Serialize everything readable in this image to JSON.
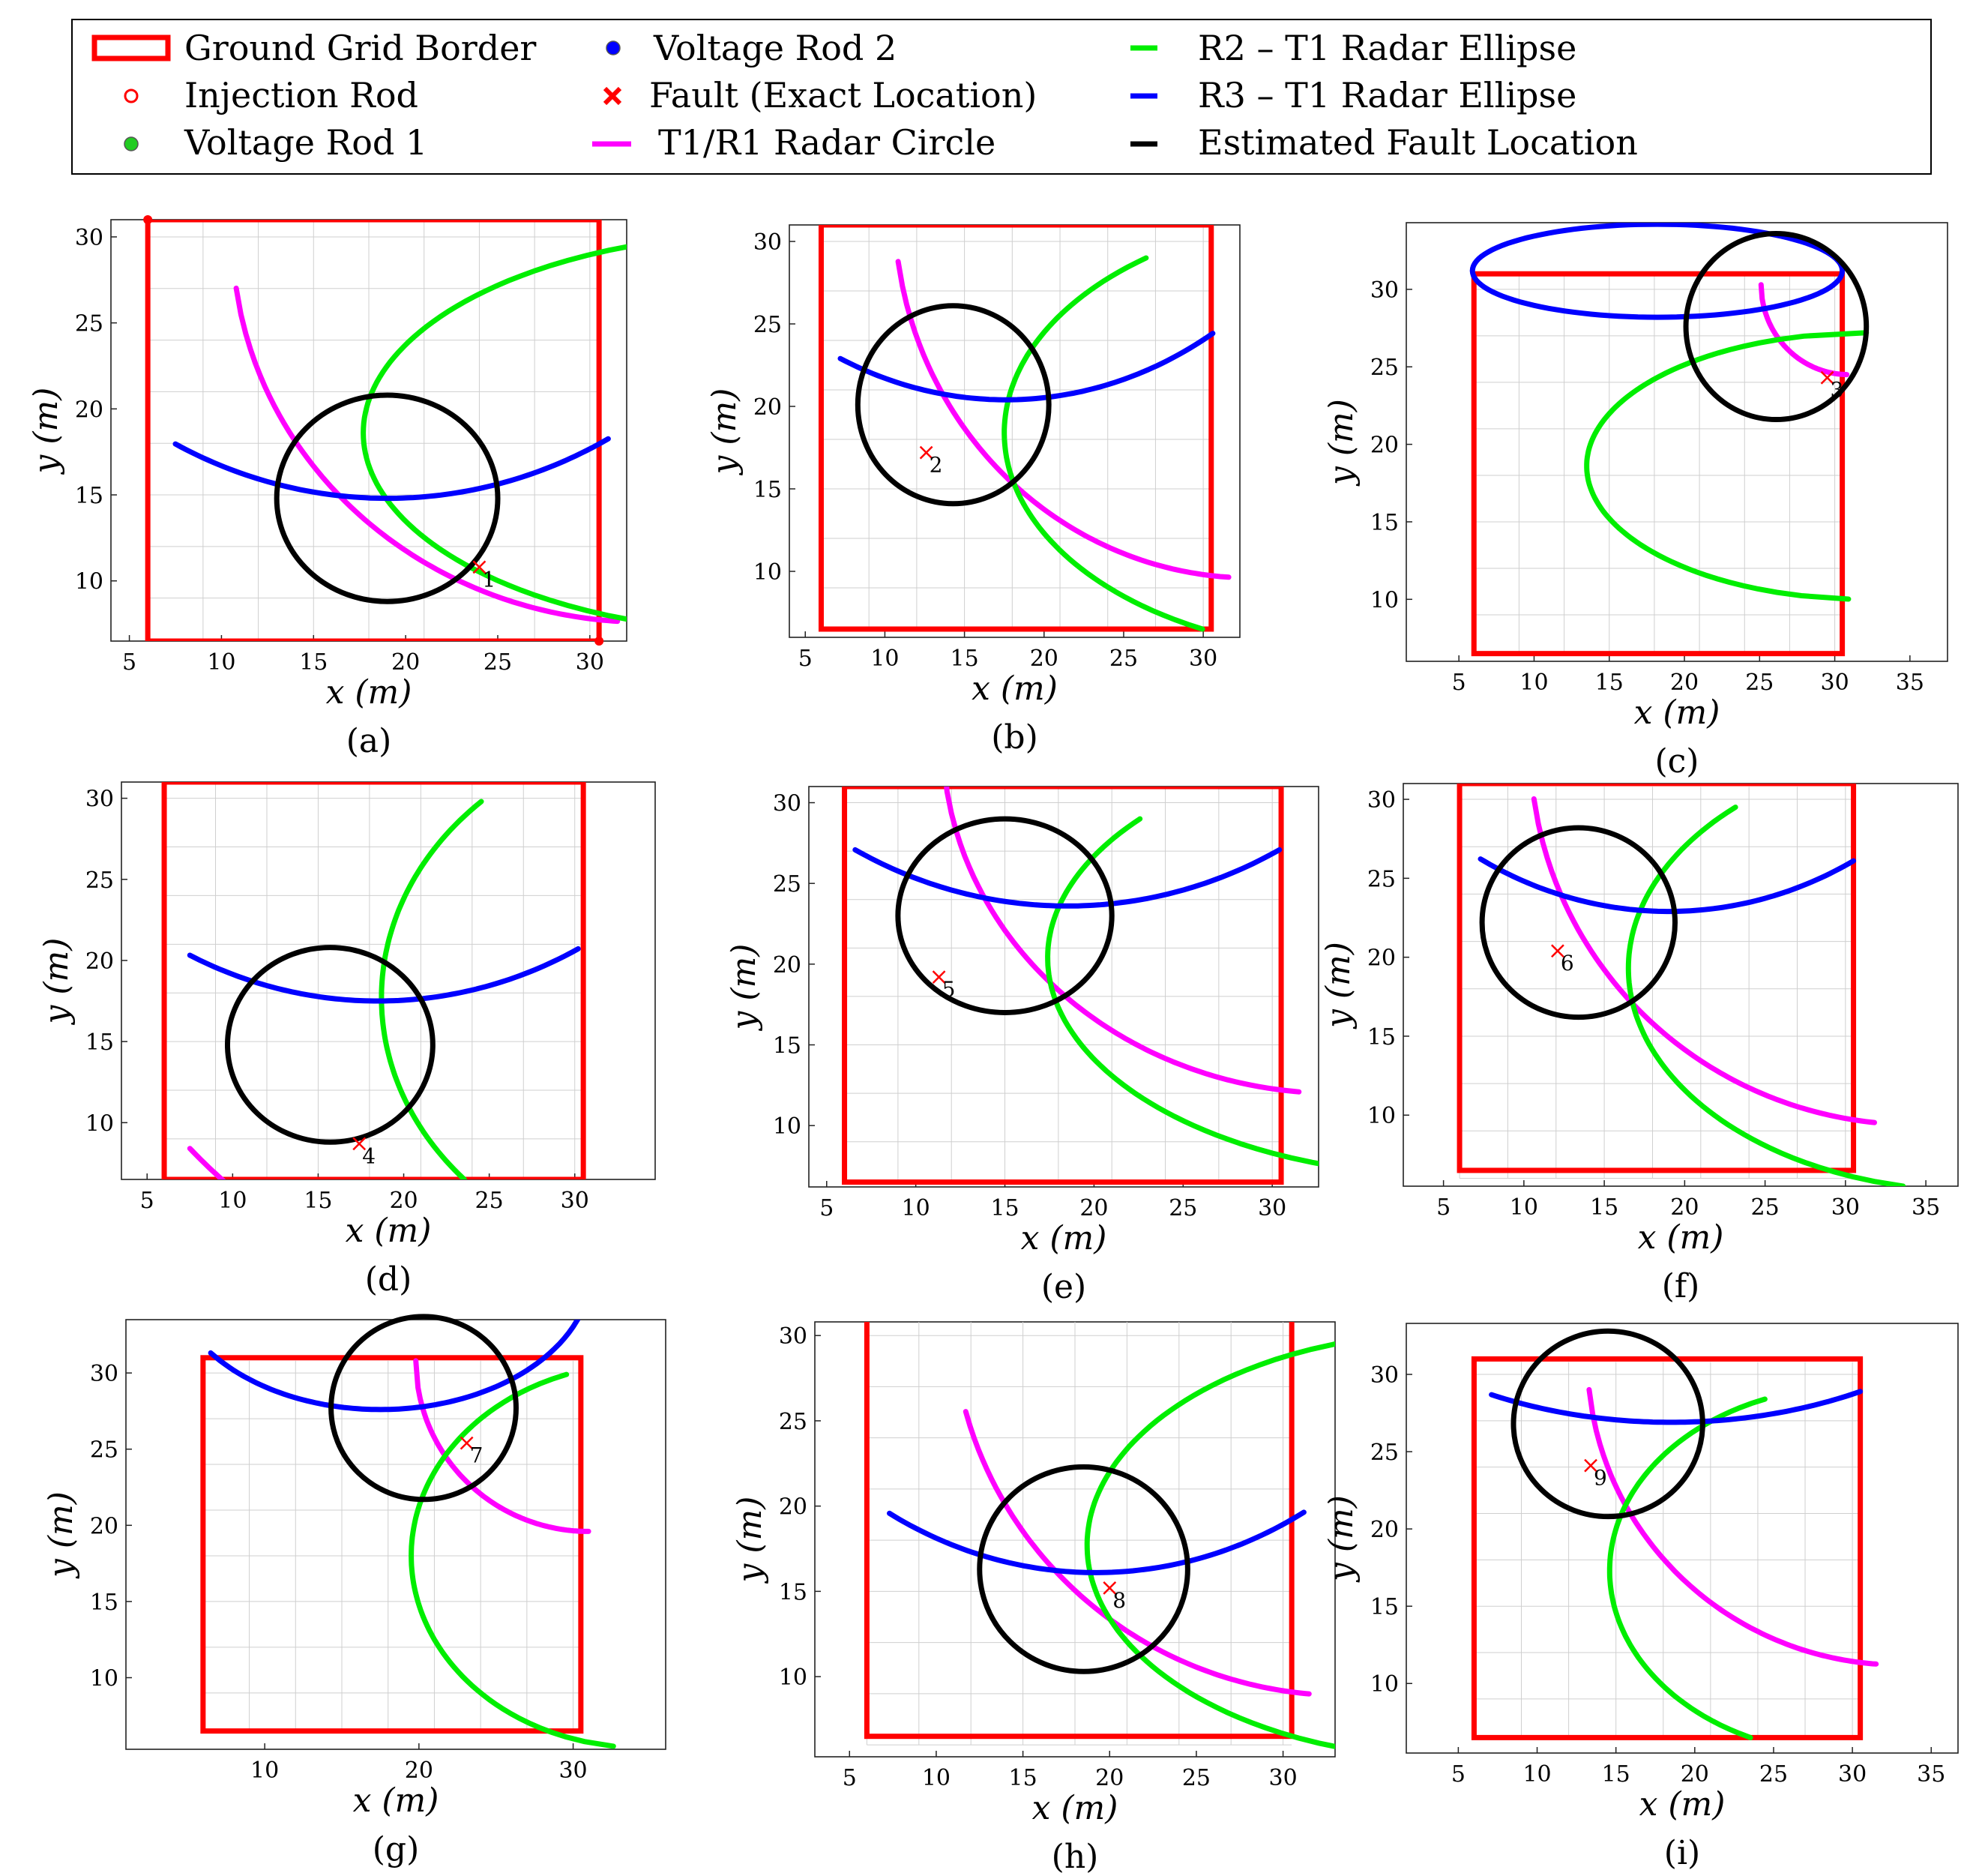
{
  "colors": {
    "border": "#ff0000",
    "injection": "#ff0000",
    "vrod1": "#22cc22",
    "vrod2": "#0000ff",
    "fault": "#ff0000",
    "circle": "#ff00ff",
    "ellipse2": "#00ee00",
    "ellipse3": "#0000ff",
    "estimate": "#000000"
  },
  "legend": {
    "border": "Ground Grid Border",
    "injection": "Injection Rod",
    "vrod1": "Voltage Rod 1",
    "vrod2": "Voltage Rod 2",
    "fault": "Fault (Exact Location)",
    "circle": "T1/R1 Radar Circle",
    "ellipse2": "R2 – T1 Radar Ellipse",
    "ellipse3": "R3 – T1 Radar Ellipse",
    "estimate": "Estimated Fault Location"
  },
  "chart_data": [
    {
      "type": "line",
      "caption": "(a)",
      "xlabel": "x (m)",
      "ylabel": "y (m)",
      "xlim": [
        4,
        32
      ],
      "ylim": [
        6.5,
        31
      ],
      "xticks": [
        5,
        10,
        15,
        20,
        25,
        30
      ],
      "yticks": [
        10,
        15,
        20,
        25,
        30
      ],
      "grid": [
        6,
        30.5,
        6.5,
        31
      ],
      "injection_rod": [
        6,
        31
      ],
      "voltage_rod_1": [
        30.5,
        6.5
      ],
      "fault": [
        24,
        10.8
      ],
      "fault_label": "1",
      "estimate_center": [
        19,
        14.8
      ],
      "estimate_radius": 6,
      "circle": {
        "center": [
          33,
          30
        ],
        "radius": 22.4,
        "x_from": 10.8,
        "x_to": 31.5
      },
      "ellipse2": {
        "center": [
          40,
          18.6
        ],
        "a": 22.3,
        "b": 11.6,
        "y_from": 6.8,
        "y_to": 30.4
      },
      "ellipse3": {
        "center": [
          19,
          43
        ],
        "a": 25,
        "b": 28.2,
        "x_from": 7.5,
        "x_to": 31
      }
    },
    {
      "type": "line",
      "caption": "(b)",
      "xlabel": "x (m)",
      "ylabel": "y (m)",
      "xlim": [
        4,
        32.3
      ],
      "ylim": [
        6,
        31
      ],
      "xticks": [
        5,
        10,
        15,
        20,
        25,
        30
      ],
      "yticks": [
        10,
        15,
        20,
        25,
        30
      ],
      "grid": [
        6,
        30.5,
        6.5,
        31
      ],
      "fault": [
        12.6,
        17.2
      ],
      "fault_label": "2",
      "estimate_center": [
        14.3,
        20.1
      ],
      "estimate_radius": 6,
      "circle": {
        "center": [
          33,
          32
        ],
        "radius": 22.4,
        "x_from": 10.3,
        "x_to": 31.6
      },
      "ellipse2": {
        "center": [
          40,
          18.4
        ],
        "a": 22.5,
        "b": 13.3,
        "y_from": 6.5,
        "y_to": 29
      },
      "ellipse3": {
        "center": [
          17.6,
          48
        ],
        "a": 25,
        "b": 27.6,
        "x_from": 7.2,
        "x_to": 30.6
      }
    },
    {
      "type": "line",
      "caption": "(c)",
      "xlabel": "x (m)",
      "ylabel": "y (m)",
      "xlim": [
        1.5,
        37.5
      ],
      "ylim": [
        6,
        34.3
      ],
      "xticks": [
        5,
        10,
        15,
        20,
        25,
        30,
        35
      ],
      "yticks": [
        10,
        15,
        20,
        25,
        30
      ],
      "grid": [
        6,
        30.5,
        6.5,
        31
      ],
      "fault": [
        29.5,
        24.3
      ],
      "fault_label": "3",
      "estimate_center": [
        26.1,
        27.6
      ],
      "estimate_radius": 6,
      "circle": {
        "center": [
          30.9,
          30.3
        ],
        "radius": 5.8,
        "x_from": 25.1,
        "x_to": 30.8
      },
      "ellipse2": {
        "center": [
          32.1,
          18.6
        ],
        "a": 18.6,
        "b": 8.6,
        "y_from": 9.8,
        "y_to": 27.2
      },
      "ellipse3": {
        "center": [
          18.2,
          31.2
        ],
        "a": 12.3,
        "b": 3,
        "x_from": 5.9,
        "x_to": 30.5
      }
    },
    {
      "type": "line",
      "caption": "(d)",
      "xlabel": "x (m)",
      "ylabel": "y (m)",
      "xlim": [
        3.5,
        34.7
      ],
      "ylim": [
        6.5,
        31
      ],
      "xticks": [
        5,
        10,
        15,
        20,
        25,
        30
      ],
      "yticks": [
        10,
        15,
        20,
        25,
        30
      ],
      "grid": [
        6,
        30.5,
        6.5,
        31
      ],
      "fault": [
        17.4,
        8.7
      ],
      "fault_label": "4",
      "estimate_center": [
        15.7,
        14.8
      ],
      "estimate_radius": 6,
      "circle": {
        "center": [
          33,
          31.5
        ],
        "radius": 34.4,
        "x_from": 7.5,
        "x_to": 20.5
      },
      "ellipse2": {
        "center": [
          37.2,
          17.7
        ],
        "a": 18.5,
        "b": 16.6,
        "y_from": 6.5,
        "y_to": 29.8
      },
      "ellipse3": {
        "center": [
          18.5,
          44
        ],
        "a": 24.5,
        "b": 26.5,
        "x_from": 7.5,
        "x_to": 30.2
      }
    },
    {
      "type": "line",
      "caption": "(e)",
      "xlabel": "x (m)",
      "ylabel": "y (m)",
      "xlim": [
        4,
        32.6
      ],
      "ylim": [
        6.2,
        31
      ],
      "xticks": [
        5,
        10,
        15,
        20,
        25,
        30
      ],
      "yticks": [
        10,
        15,
        20,
        25,
        30
      ],
      "grid": [
        6,
        30.5,
        6.5,
        31
      ],
      "fault": [
        11.3,
        19.2
      ],
      "fault_label": "5",
      "estimate_center": [
        15,
        23
      ],
      "estimate_radius": 6,
      "circle": {
        "center": [
          33.5,
          34
        ],
        "radius": 22,
        "x_from": 11.5,
        "x_to": 31.5
      },
      "ellipse2": {
        "center": [
          40,
          20.4
        ],
        "a": 22.6,
        "b": 13.5,
        "y_from": 6.3,
        "y_to": 29
      },
      "ellipse3": {
        "center": [
          18.5,
          51.5
        ],
        "a": 24.6,
        "b": 27.9,
        "x_from": 6.6,
        "x_to": 30.4
      }
    },
    {
      "type": "line",
      "caption": "(f)",
      "xlabel": "x (m)",
      "ylabel": "y (m)",
      "xlim": [
        2.5,
        37
      ],
      "ylim": [
        5.5,
        31
      ],
      "xticks": [
        5,
        10,
        15,
        20,
        25,
        30,
        35
      ],
      "yticks": [
        10,
        15,
        20,
        25,
        30
      ],
      "grid": [
        6,
        30.5,
        6,
        30.8
      ],
      "fault": [
        12.1,
        20.4
      ],
      "fault_label": "6",
      "estimate_center": [
        13.4,
        22.2
      ],
      "estimate_radius": 6,
      "circle": {
        "center": [
          34.3,
          33.3
        ],
        "radius": 23.9,
        "x_from": 9.8,
        "x_to": 31.8
      },
      "ellipse2": {
        "center": [
          38,
          19.3
        ],
        "a": 21.5,
        "b": 14.1,
        "y_from": 5.5,
        "y_to": 29.5
      },
      "ellipse3": {
        "center": [
          19,
          49.8
        ],
        "a": 24.3,
        "b": 26.9,
        "x_from": 7.3,
        "x_to": 30.5
      }
    },
    {
      "type": "line",
      "caption": "(g)",
      "xlabel": "x (m)",
      "ylabel": "y (m)",
      "xlim": [
        1,
        36
      ],
      "ylim": [
        5.3,
        33.5
      ],
      "xticks": [
        10,
        20,
        30
      ],
      "yticks": [
        10,
        15,
        20,
        25,
        30
      ],
      "grid": [
        6,
        30.5,
        6.5,
        30.8
      ],
      "fault": [
        23.1,
        25.4
      ],
      "fault_label": "7",
      "estimate_center": [
        20.3,
        27.7
      ],
      "estimate_radius": 6,
      "circle": {
        "center": [
          31,
          30.8
        ],
        "radius": 11.2,
        "x_from": 19.8,
        "x_to": 31
      },
      "ellipse2": {
        "center": [
          34.5,
          18
        ],
        "a": 15,
        "b": 12.6,
        "y_from": 5.5,
        "y_to": 29.9
      },
      "ellipse3": {
        "center": [
          17.5,
          36.8
        ],
        "a": 13.7,
        "b": 9.2,
        "x_from": 6.5,
        "x_to": 30.3
      }
    },
    {
      "type": "line",
      "caption": "(h)",
      "xlabel": "x (m)",
      "ylabel": "y (m)",
      "xlim": [
        3,
        33
      ],
      "ylim": [
        5.3,
        30.8
      ],
      "xticks": [
        5,
        10,
        15,
        20,
        25,
        30
      ],
      "yticks": [
        10,
        15,
        20,
        25,
        30
      ],
      "grid": [
        6,
        30.5,
        6,
        30.8
      ],
      "fault": [
        20,
        15.2
      ],
      "fault_label": "8",
      "estimate_center": [
        18.5,
        16.3
      ],
      "estimate_radius": 6,
      "circle": {
        "center": [
          33.5,
          31.5
        ],
        "radius": 22.6,
        "x_from": 11.7,
        "x_to": 31.5
      },
      "ellipse2": {
        "center": [
          40,
          17.7
        ],
        "a": 21.3,
        "b": 12.5,
        "y_from": 5.5,
        "y_to": 29.5
      },
      "ellipse3": {
        "center": [
          19.2,
          43.7
        ],
        "a": 24.5,
        "b": 27.6,
        "x_from": 7.3,
        "x_to": 31.2
      }
    },
    {
      "type": "line",
      "caption": "(i)",
      "xlabel": "x (m)",
      "ylabel": "y (m)",
      "xlim": [
        1.7,
        36.7
      ],
      "ylim": [
        5.5,
        33.3
      ],
      "xticks": [
        5,
        10,
        15,
        20,
        25,
        30,
        35
      ],
      "yticks": [
        10,
        15,
        20,
        25,
        30
      ],
      "grid": [
        6,
        30.5,
        6.5,
        30.8
      ],
      "fault": [
        13.4,
        24.1
      ],
      "fault_label": "9",
      "estimate_center": [
        14.5,
        26.8
      ],
      "estimate_radius": 6,
      "circle": {
        "center": [
          33,
          31
        ],
        "radius": 19.8,
        "x_from": 13.3,
        "x_to": 31.5
      },
      "ellipse2": {
        "center": [
          30,
          17.3
        ],
        "a": 15.4,
        "b": 11.9,
        "y_from": 6.5,
        "y_to": 28.4
      },
      "ellipse3": {
        "center": [
          18.5,
          43
        ],
        "a": 24.9,
        "b": 16.1,
        "x_from": 7.1,
        "x_to": 30.5
      }
    }
  ]
}
